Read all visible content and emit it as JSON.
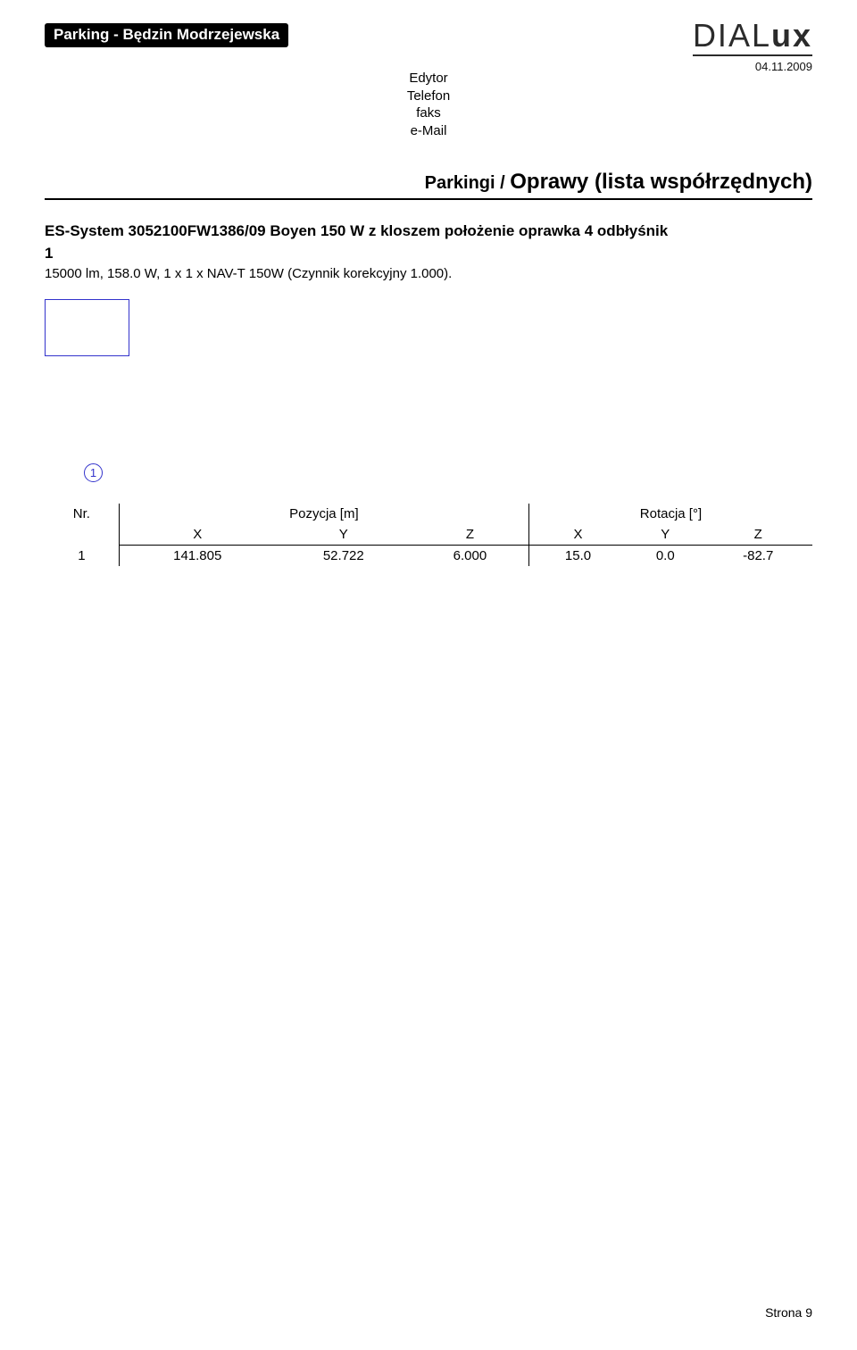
{
  "header": {
    "title": "Parking - Będzin Modrzejewska",
    "logo_thin": "DIAL",
    "logo_bold": "ux",
    "date": "04.11.2009"
  },
  "meta": {
    "l1": "Edytor",
    "l2": "Telefon",
    "l3": "faks",
    "l4": "e-Mail"
  },
  "section": {
    "prefix": "Parkingi / ",
    "main": "Oprawy (lista współrzędnych)"
  },
  "spec": {
    "line1": "ES-System 3052100FW1386/09 Boyen 150 W z kloszem położenie oprawka 4 odbłyśnik",
    "line2": "1",
    "sub": "15000 lm, 158.0 W, 1 x 1 x NAV-T 150W (Czynnik korekcyjny 1.000)."
  },
  "icon": {
    "border_color": "#3333cc",
    "circle_label": "1"
  },
  "table": {
    "col_nr": "Nr.",
    "group_pos": "Pozycja [m]",
    "group_rot": "Rotacja [°]",
    "cols": {
      "x": "X",
      "y": "Y",
      "z": "Z"
    },
    "rows": [
      {
        "nr": "1",
        "px": "141.805",
        "py": "52.722",
        "pz": "6.000",
        "rx": "15.0",
        "ry": "0.0",
        "rz": "-82.7"
      }
    ]
  },
  "footer": {
    "page": "Strona 9"
  }
}
